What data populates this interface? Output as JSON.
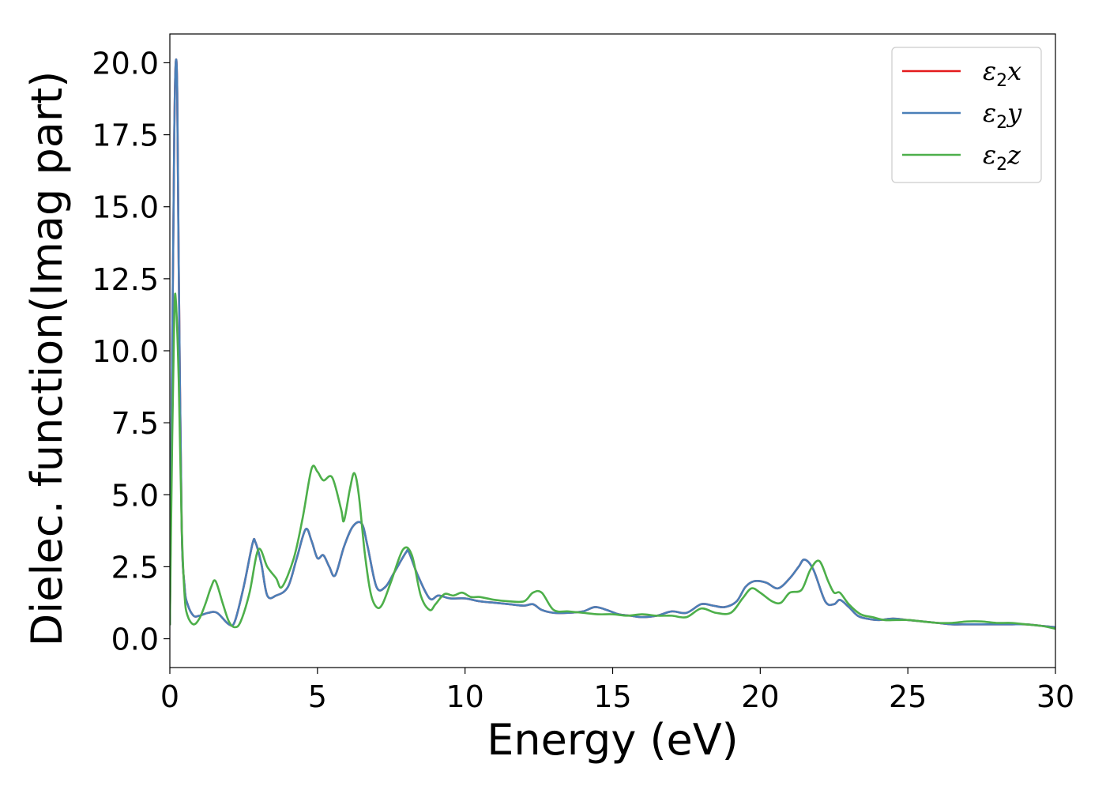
{
  "chart_data": {
    "type": "line",
    "title": "",
    "xlabel": "Energy (eV)",
    "ylabel": "Dielec. function(Imag part)",
    "xlim": [
      0,
      30
    ],
    "ylim": [
      -1,
      21
    ],
    "xticks": [
      0,
      5,
      10,
      15,
      20,
      25,
      30
    ],
    "xtick_labels": [
      "0",
      "5",
      "10",
      "15",
      "20",
      "25",
      "30"
    ],
    "yticks": [
      0,
      2.5,
      5,
      7.5,
      10,
      12.5,
      15,
      17.5,
      20
    ],
    "ytick_labels": [
      "0.0",
      "2.5",
      "5.0",
      "7.5",
      "10.0",
      "12.5",
      "15.0",
      "17.5",
      "20.0"
    ],
    "grid": false,
    "legend_position": "top-right",
    "series": [
      {
        "name": "ε2x",
        "legend": {
          "base": "ε",
          "sub": "2",
          "axis": "x"
        },
        "color": "#e41a1c",
        "x": [
          0,
          0.08,
          0.15,
          0.2,
          0.25,
          0.3,
          0.4,
          0.5,
          0.6,
          0.8,
          1.0,
          1.3,
          1.6,
          2.0,
          2.2,
          2.5,
          2.8,
          2.9,
          3.1,
          3.3,
          3.6,
          4.0,
          4.3,
          4.6,
          4.8,
          5.0,
          5.2,
          5.4,
          5.6,
          5.9,
          6.2,
          6.5,
          6.7,
          7.0,
          7.3,
          7.6,
          8.0,
          8.1,
          8.4,
          8.8,
          9.1,
          9.5,
          10.0,
          10.5,
          11.0,
          11.5,
          12.0,
          12.3,
          12.6,
          13.0,
          13.5,
          14.0,
          14.4,
          14.8,
          15.2,
          15.6,
          16.0,
          16.5,
          17.0,
          17.5,
          18.0,
          18.4,
          18.8,
          19.2,
          19.5,
          19.8,
          20.2,
          20.6,
          21.0,
          21.3,
          21.5,
          21.8,
          22.2,
          22.5,
          22.7,
          23.0,
          23.3,
          23.6,
          24.0,
          24.5,
          25.0,
          25.5,
          26.0,
          26.5,
          27.0,
          27.5,
          28.0,
          28.5,
          29.0,
          29.5,
          30.0
        ],
        "y": [
          0.5,
          10.0,
          17.5,
          20.0,
          19.0,
          13.0,
          4.0,
          1.8,
          1.2,
          0.8,
          0.8,
          0.9,
          0.9,
          0.5,
          0.6,
          1.8,
          3.3,
          3.35,
          2.6,
          1.5,
          1.5,
          1.8,
          2.8,
          3.8,
          3.4,
          2.8,
          2.9,
          2.5,
          2.2,
          3.2,
          3.9,
          4.0,
          3.2,
          1.8,
          1.8,
          2.3,
          3.0,
          3.0,
          2.2,
          1.4,
          1.5,
          1.4,
          1.4,
          1.3,
          1.25,
          1.2,
          1.15,
          1.2,
          1.0,
          0.9,
          0.9,
          0.95,
          1.1,
          1.0,
          0.85,
          0.8,
          0.75,
          0.8,
          0.95,
          0.9,
          1.2,
          1.15,
          1.1,
          1.3,
          1.8,
          2.0,
          1.95,
          1.75,
          2.1,
          2.5,
          2.75,
          2.4,
          1.3,
          1.2,
          1.35,
          1.1,
          0.8,
          0.7,
          0.65,
          0.7,
          0.65,
          0.6,
          0.55,
          0.5,
          0.5,
          0.5,
          0.5,
          0.5,
          0.5,
          0.45,
          0.4
        ]
      },
      {
        "name": "ε2y",
        "legend": {
          "base": "ε",
          "sub": "2",
          "axis": "y"
        },
        "color": "#4a7fb8",
        "x": [
          0,
          0.08,
          0.15,
          0.2,
          0.25,
          0.3,
          0.4,
          0.5,
          0.6,
          0.8,
          1.0,
          1.3,
          1.6,
          2.0,
          2.2,
          2.5,
          2.8,
          2.9,
          3.1,
          3.3,
          3.6,
          4.0,
          4.3,
          4.6,
          4.8,
          5.0,
          5.2,
          5.4,
          5.6,
          5.9,
          6.2,
          6.5,
          6.7,
          7.0,
          7.3,
          7.6,
          8.0,
          8.1,
          8.4,
          8.8,
          9.1,
          9.5,
          10.0,
          10.5,
          11.0,
          11.5,
          12.0,
          12.3,
          12.6,
          13.0,
          13.5,
          14.0,
          14.4,
          14.8,
          15.2,
          15.6,
          16.0,
          16.5,
          17.0,
          17.5,
          18.0,
          18.4,
          18.8,
          19.2,
          19.5,
          19.8,
          20.2,
          20.6,
          21.0,
          21.3,
          21.5,
          21.8,
          22.2,
          22.5,
          22.7,
          23.0,
          23.3,
          23.6,
          24.0,
          24.5,
          25.0,
          25.5,
          26.0,
          26.5,
          27.0,
          27.5,
          28.0,
          28.5,
          29.0,
          29.5,
          30.0
        ],
        "y": [
          0.5,
          10.0,
          17.5,
          20.0,
          19.0,
          13.0,
          4.0,
          1.8,
          1.2,
          0.8,
          0.8,
          0.9,
          0.9,
          0.5,
          0.6,
          1.8,
          3.3,
          3.35,
          2.6,
          1.5,
          1.5,
          1.8,
          2.8,
          3.8,
          3.4,
          2.8,
          2.9,
          2.5,
          2.2,
          3.2,
          3.9,
          4.0,
          3.2,
          1.8,
          1.8,
          2.3,
          3.0,
          3.0,
          2.2,
          1.4,
          1.5,
          1.4,
          1.4,
          1.3,
          1.25,
          1.2,
          1.15,
          1.2,
          1.0,
          0.9,
          0.9,
          0.95,
          1.1,
          1.0,
          0.85,
          0.8,
          0.75,
          0.8,
          0.95,
          0.9,
          1.2,
          1.15,
          1.1,
          1.3,
          1.8,
          2.0,
          1.95,
          1.75,
          2.1,
          2.5,
          2.75,
          2.4,
          1.3,
          1.2,
          1.35,
          1.1,
          0.8,
          0.7,
          0.65,
          0.7,
          0.65,
          0.6,
          0.55,
          0.5,
          0.5,
          0.5,
          0.5,
          0.5,
          0.5,
          0.45,
          0.4
        ]
      },
      {
        "name": "ε2z",
        "legend": {
          "base": "ε",
          "sub": "2",
          "axis": "z"
        },
        "color": "#4daf4a",
        "x": [
          0,
          0.08,
          0.15,
          0.2,
          0.3,
          0.4,
          0.5,
          0.6,
          0.8,
          1.0,
          1.2,
          1.4,
          1.55,
          1.8,
          2.0,
          2.2,
          2.4,
          2.7,
          3.0,
          3.3,
          3.6,
          3.8,
          4.2,
          4.5,
          4.8,
          5.0,
          5.2,
          5.5,
          5.8,
          5.9,
          6.1,
          6.25,
          6.4,
          6.6,
          6.8,
          7.0,
          7.2,
          7.5,
          7.9,
          8.2,
          8.5,
          8.8,
          9.0,
          9.3,
          9.6,
          9.9,
          10.2,
          10.5,
          11.0,
          11.5,
          12.0,
          12.3,
          12.6,
          13.0,
          13.5,
          14.0,
          14.5,
          15.0,
          15.5,
          16.0,
          16.5,
          17.0,
          17.5,
          18.0,
          18.5,
          19.0,
          19.4,
          19.7,
          20.0,
          20.4,
          20.7,
          21.0,
          21.4,
          21.7,
          22.0,
          22.3,
          22.5,
          22.7,
          23.0,
          23.4,
          23.8,
          24.2,
          24.6,
          25.0,
          25.5,
          26.0,
          26.5,
          27.0,
          27.5,
          28.0,
          28.5,
          29.0,
          29.5,
          30.0
        ],
        "y": [
          0.5,
          7.0,
          11.2,
          11.8,
          9.0,
          4.0,
          1.5,
          0.8,
          0.5,
          0.7,
          1.2,
          1.8,
          2.0,
          1.2,
          0.6,
          0.4,
          0.6,
          1.6,
          3.1,
          2.5,
          2.1,
          1.8,
          2.8,
          4.2,
          5.9,
          5.8,
          5.5,
          5.6,
          4.5,
          4.1,
          5.2,
          5.75,
          5.0,
          3.0,
          1.6,
          1.1,
          1.2,
          2.0,
          3.1,
          2.9,
          1.5,
          1.0,
          1.2,
          1.55,
          1.5,
          1.6,
          1.45,
          1.45,
          1.35,
          1.3,
          1.3,
          1.6,
          1.6,
          1.0,
          0.95,
          0.9,
          0.85,
          0.85,
          0.8,
          0.85,
          0.8,
          0.8,
          0.75,
          1.05,
          0.9,
          0.9,
          1.4,
          1.75,
          1.6,
          1.3,
          1.25,
          1.6,
          1.7,
          2.4,
          2.7,
          2.0,
          1.6,
          1.6,
          1.2,
          0.85,
          0.75,
          0.65,
          0.65,
          0.65,
          0.6,
          0.55,
          0.55,
          0.6,
          0.6,
          0.55,
          0.55,
          0.5,
          0.45,
          0.35
        ]
      }
    ]
  }
}
